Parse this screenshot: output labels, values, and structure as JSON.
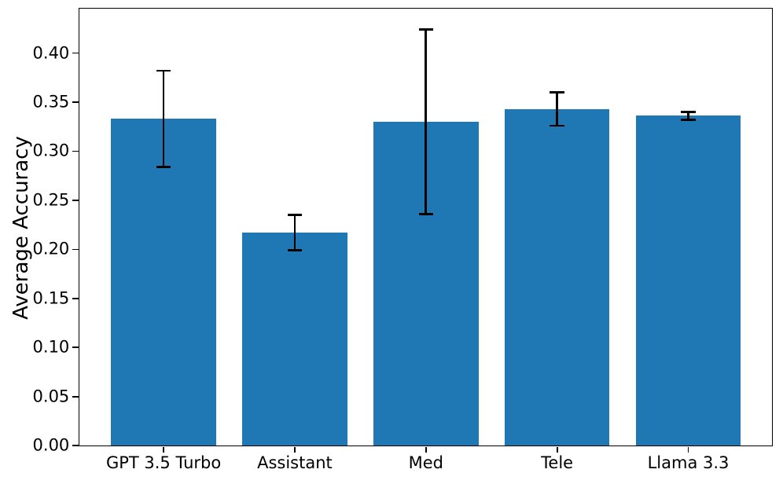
{
  "chart_data": {
    "type": "bar",
    "title": "",
    "xlabel": "",
    "ylabel": "Average Accuracy",
    "categories": [
      "GPT 3.5 Turbo",
      "Assistant",
      "Med",
      "Tele",
      "Llama 3.3"
    ],
    "values": [
      0.333,
      0.217,
      0.33,
      0.343,
      0.336
    ],
    "error_bars": [
      0.049,
      0.018,
      0.094,
      0.017,
      0.004
    ],
    "yticks": [
      "0.00",
      "0.05",
      "0.10",
      "0.15",
      "0.20",
      "0.25",
      "0.30",
      "0.35",
      "0.40"
    ],
    "ytick_values": [
      0.0,
      0.05,
      0.1,
      0.15,
      0.2,
      0.25,
      0.3,
      0.35,
      0.4
    ],
    "ylim": [
      0,
      0.445
    ],
    "bar_color": "#1f77b4",
    "error_color": "#000000",
    "grid": false,
    "legend": null
  }
}
